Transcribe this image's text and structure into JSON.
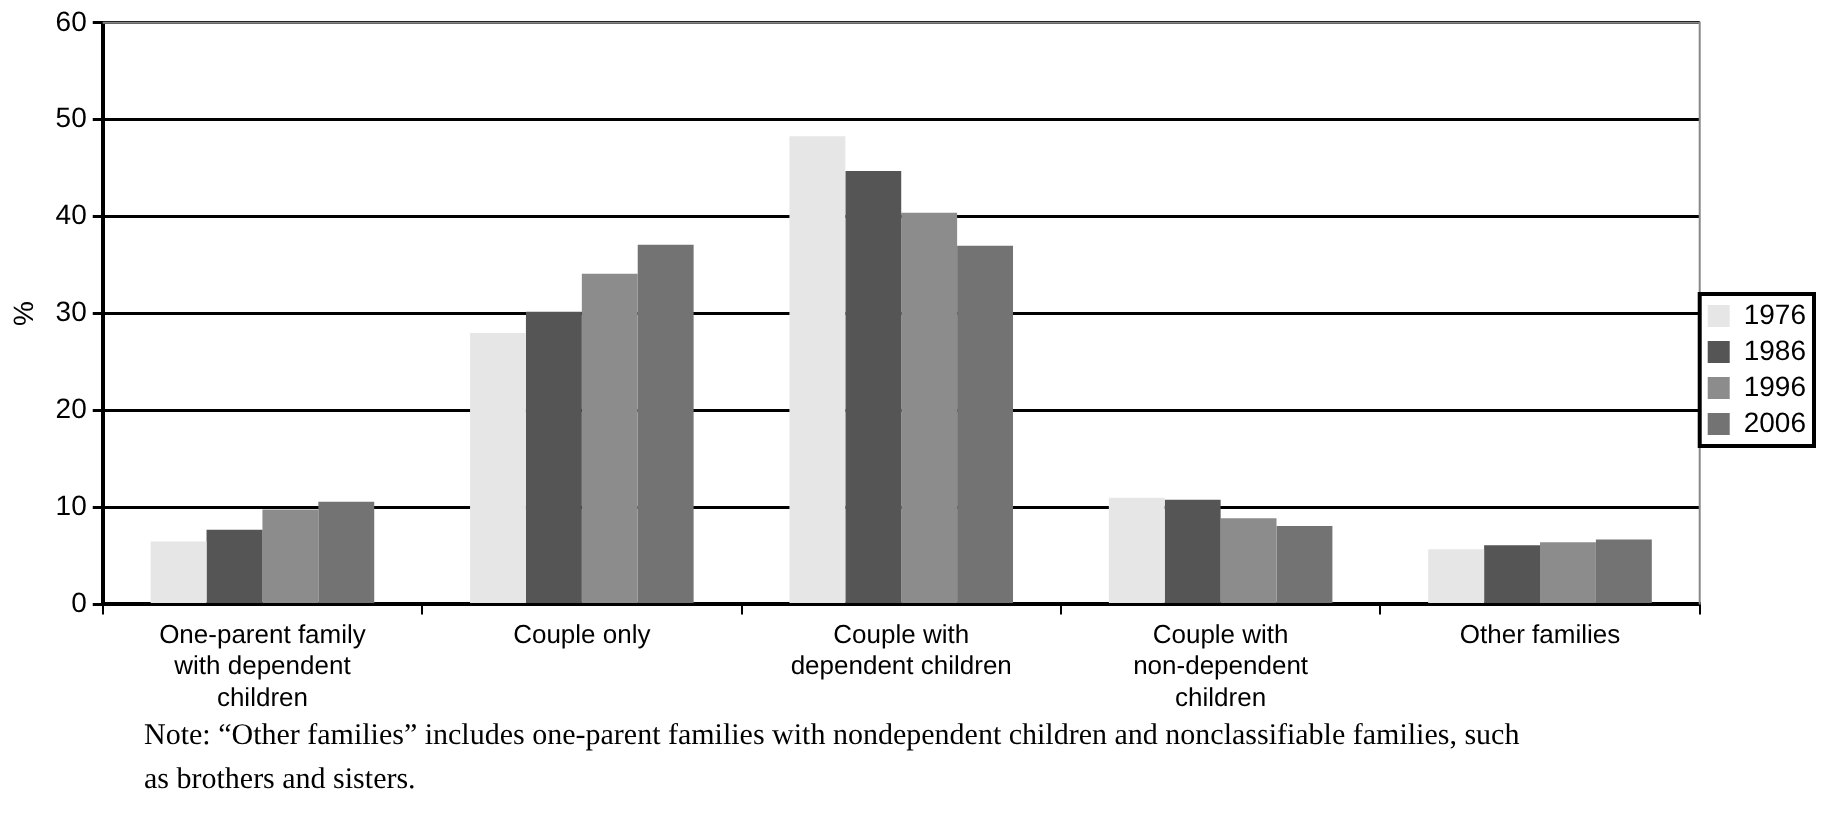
{
  "chart_data": {
    "type": "bar",
    "ylabel": "%",
    "categories": [
      "One-parent family with dependent children",
      "Couple only",
      "Couple with dependent children",
      "Couple with non-dependent children",
      "Other families"
    ],
    "series": [
      {
        "name": "1976",
        "color": "#e6e6e6",
        "values": [
          6.5,
          28,
          48.3,
          11,
          5.7
        ]
      },
      {
        "name": "1986",
        "color": "#555555",
        "values": [
          7.7,
          30.2,
          44.7,
          10.8,
          6.1
        ]
      },
      {
        "name": "1996",
        "color": "#8c8c8c",
        "values": [
          9.8,
          34.1,
          40.4,
          8.9,
          6.4
        ]
      },
      {
        "name": "2006",
        "color": "#737373",
        "values": [
          10.6,
          37.1,
          37,
          8.1,
          6.7
        ]
      }
    ],
    "ylim": [
      0,
      60
    ],
    "yticks": [
      0,
      10,
      20,
      30,
      40,
      50,
      60
    ],
    "grid": "y",
    "legend": "right",
    "annotations": [
      "Note: “Other families” includes one-parent families with nondependent children and nonclassifiable families, such as brothers and sisters."
    ]
  }
}
